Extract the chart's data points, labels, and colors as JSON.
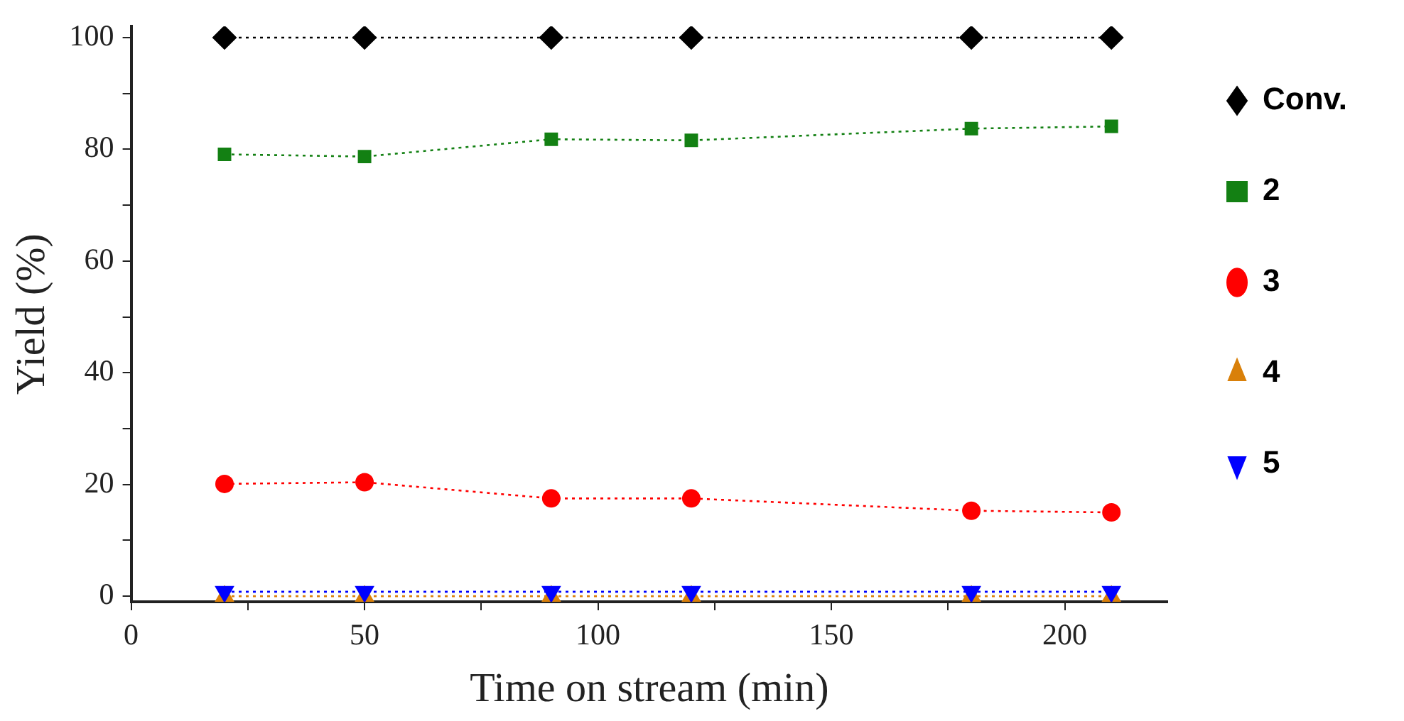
{
  "chart_data": {
    "type": "line",
    "xlabel": "Time on stream (min)",
    "ylabel": "Yield (%)",
    "x": [
      20,
      50,
      90,
      120,
      180,
      210
    ],
    "xlim": [
      0,
      222
    ],
    "xticks": [
      0,
      {
        "value": 25,
        "label": null
      },
      50,
      {
        "value": 75,
        "label": null
      },
      100,
      {
        "value": 125,
        "label": null
      },
      150,
      {
        "value": 175,
        "label": null
      },
      200
    ],
    "ylim": [
      -1,
      102
    ],
    "yticks": [
      0,
      {
        "value": 10,
        "label": null
      },
      20,
      {
        "value": 30,
        "label": null
      },
      40,
      {
        "value": 50,
        "label": null
      },
      60,
      {
        "value": 70,
        "label": null
      },
      80,
      {
        "value": 90,
        "label": null
      },
      100
    ],
    "grid": false,
    "legend": "right",
    "line_style": "dotted",
    "series": [
      {
        "name": "Conv.",
        "color": "#000000",
        "marker": "diamond",
        "values": [
          100,
          100,
          100,
          100,
          100,
          100
        ]
      },
      {
        "name": "2",
        "color": "#138013",
        "marker": "square",
        "values": [
          79.1,
          78.7,
          81.8,
          81.6,
          83.7,
          84.1
        ]
      },
      {
        "name": "3",
        "color": "#ff0000",
        "marker": "circle",
        "values": [
          20.1,
          20.4,
          17.5,
          17.5,
          15.3,
          15.0
        ]
      },
      {
        "name": "4",
        "color": "#d9800a",
        "marker": "triangle",
        "values": [
          0,
          0,
          0,
          0,
          0,
          0
        ]
      },
      {
        "name": "5",
        "color": "#0000ff",
        "marker": "triangle-down",
        "values": [
          0.8,
          0.8,
          0.8,
          0.8,
          0.8,
          0.8
        ]
      }
    ]
  }
}
